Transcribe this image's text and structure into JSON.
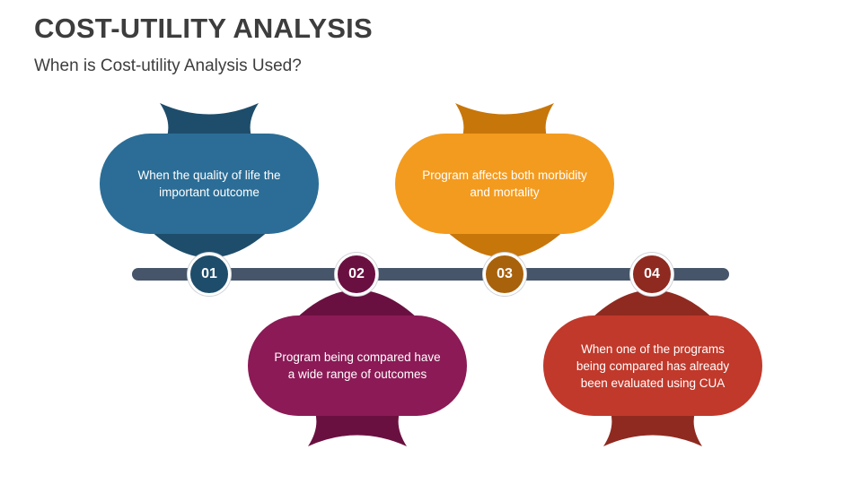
{
  "title": "COST-UTILITY ANALYSIS",
  "subtitle": "When is Cost-utility Analysis Used?",
  "colors": {
    "timeline": "#465569",
    "step1": "#2b6d96",
    "step1_dark": "#1e4d6b",
    "step2": "#8b1a56",
    "step2_dark": "#6a1040",
    "step3": "#f39b1f",
    "step3_dark": "#c7760a",
    "step4": "#c0392b",
    "step4_dark": "#8f2a20"
  },
  "steps": [
    {
      "number": "01",
      "text": "When the quality of life the important outcome"
    },
    {
      "number": "02",
      "text": "Program being compared have a wide range of outcomes"
    },
    {
      "number": "03",
      "text": "Program affects both morbidity and mortality"
    },
    {
      "number": "04",
      "text": "When one of the programs being compared has already been evaluated using CUA"
    }
  ]
}
